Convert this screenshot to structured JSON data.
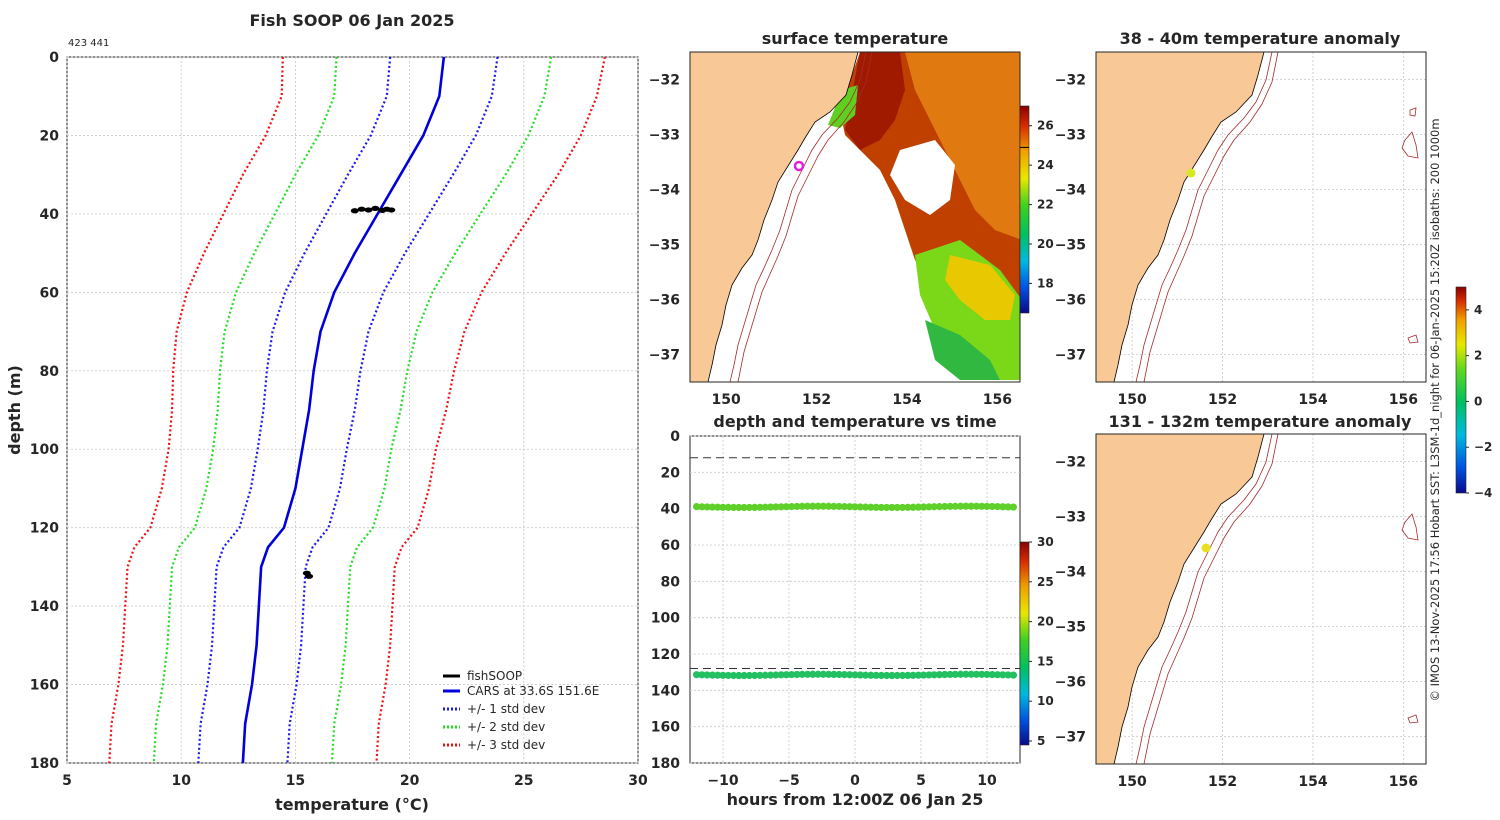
{
  "title": "Fish SOOP 06 Jan 2025",
  "id_label": "423 441",
  "chart_data": [
    {
      "type": "line",
      "name": "profile",
      "title": "Fish SOOP 06 Jan 2025",
      "xlabel": "temperature (°C)",
      "ylabel": "depth (m)",
      "xlim": [
        5,
        30
      ],
      "ylim": [
        180,
        0
      ],
      "xticks": [
        5,
        10,
        15,
        20,
        25,
        30
      ],
      "yticks": [
        0,
        20,
        40,
        60,
        80,
        100,
        120,
        140,
        160,
        180
      ],
      "depths": [
        0,
        10,
        20,
        30,
        40,
        50,
        60,
        70,
        80,
        90,
        100,
        110,
        120,
        125,
        130,
        140,
        150,
        160,
        170,
        180
      ],
      "mean": [
        21.5,
        21.3,
        20.6,
        19.6,
        18.6,
        17.6,
        16.7,
        16.1,
        15.8,
        15.6,
        15.3,
        15.0,
        14.5,
        13.8,
        13.5,
        13.4,
        13.3,
        13.1,
        12.8,
        12.7
      ],
      "series": [
        {
          "name": "fishSOOP",
          "color": "#000000",
          "points": [
            [
              17.6,
              39.2
            ],
            [
              17.9,
              38.8
            ],
            [
              18.2,
              39.0
            ],
            [
              18.5,
              38.6
            ],
            [
              18.8,
              39.1
            ],
            [
              19.0,
              38.8
            ],
            [
              19.2,
              39.0
            ],
            [
              15.5,
              131.6
            ],
            [
              15.6,
              132.4
            ]
          ]
        },
        {
          "name": "CARS at 33.6S 151.6E",
          "color": "#0000dd",
          "std_mult": 0
        },
        {
          "name": "+/- 1 std dev",
          "color": "#1a1aee",
          "std_mult": 1
        },
        {
          "name": "+/- 2 std dev",
          "color": "#22dd22",
          "std_mult": 2
        },
        {
          "name": "+/- 3 std dev",
          "color": "#ee1111",
          "std_mult": 3
        }
      ],
      "std": [
        2.35,
        2.3,
        2.3,
        2.3,
        2.25,
        2.2,
        2.15,
        2.1,
        2.05,
        2.0,
        1.95,
        1.95,
        1.95,
        1.95,
        1.95,
        1.95,
        1.95,
        1.95,
        1.95,
        1.95
      ],
      "legend": "bottom-right"
    },
    {
      "type": "map",
      "name": "surface-temperature",
      "title": "surface temperature",
      "xlim": [
        149.2,
        156.5
      ],
      "ylim": [
        -37.5,
        -31.5
      ],
      "xticks": [
        150,
        152,
        154,
        156
      ],
      "yticks": [
        -32,
        -33,
        -34,
        -35,
        -36,
        -37
      ],
      "colorbar": {
        "min": 16.5,
        "max": 27,
        "ticks": [
          18,
          20,
          22,
          24,
          26
        ],
        "line_value": 24.9
      },
      "marker": {
        "lon": 151.65,
        "lat": -33.6
      }
    },
    {
      "type": "scatter",
      "name": "depth-vs-time",
      "title": "depth and temperature vs time",
      "xlabel": "hours from 12:00Z 06 Jan 25",
      "xlim": [
        -12.5,
        12.5
      ],
      "ylim": [
        180,
        0
      ],
      "xticks": [
        -10,
        -5,
        0,
        5,
        10
      ],
      "yticks": [
        0,
        20,
        40,
        60,
        80,
        100,
        120,
        140,
        160,
        180
      ],
      "dashed_depths": [
        12,
        128
      ],
      "series": [
        {
          "name": "shallow",
          "depth": 39,
          "temperature": 18.5,
          "hours": [
            -12,
            12
          ]
        },
        {
          "name": "deep",
          "depth": 131.5,
          "temperature": 15.5,
          "hours": [
            -12,
            12
          ]
        }
      ],
      "colorbar": {
        "min": 4.5,
        "max": 30,
        "ticks": [
          5,
          10,
          15,
          20,
          25,
          30
        ]
      }
    },
    {
      "type": "map",
      "name": "anomaly-38-40m",
      "title": "38 - 40m temperature anomaly",
      "xlim": [
        149.2,
        156.5
      ],
      "ylim": [
        -37.5,
        -31.5
      ],
      "xticks": [
        150,
        152,
        154,
        156
      ],
      "yticks": [
        -32,
        -33,
        -34,
        -35,
        -36,
        -37
      ],
      "marker": {
        "lon": 151.3,
        "lat": -33.7,
        "anomaly": 2.2
      }
    },
    {
      "type": "map",
      "name": "anomaly-131-132m",
      "title": "131 - 132m temperature anomaly",
      "xlim": [
        149.2,
        156.5
      ],
      "ylim": [
        -37.5,
        -31.5
      ],
      "xticks": [
        150,
        152,
        154,
        156
      ],
      "yticks": [
        -32,
        -33,
        -34,
        -35,
        -36,
        -37
      ],
      "marker": {
        "lon": 151.65,
        "lat": -33.6,
        "anomaly": 2.5
      },
      "colorbar": {
        "min": -4,
        "max": 5,
        "ticks": [
          -4,
          -2,
          0,
          2,
          4
        ]
      }
    }
  ],
  "side_text": "© IMOS 13-Nov-2025 17:56 Hobart SST: L3SM-1d_night for 06-Jan-2025 15:20Z isobaths: 200  1000m"
}
